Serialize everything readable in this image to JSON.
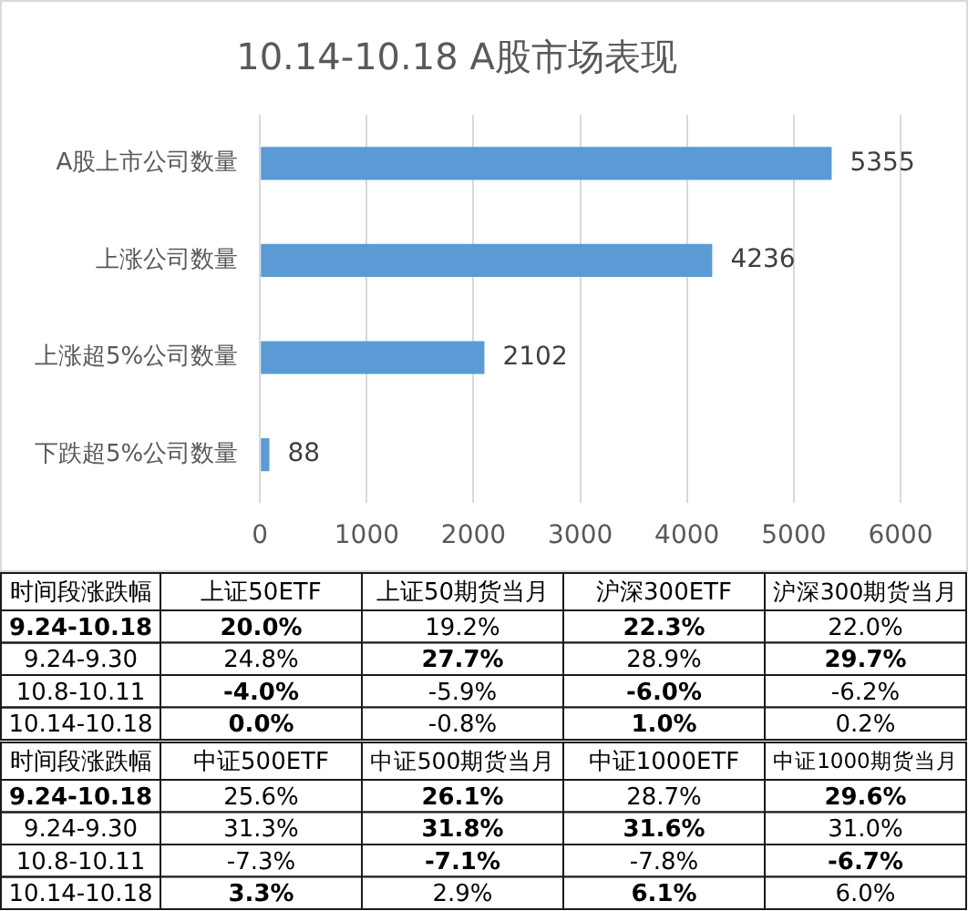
{
  "chart_data": [
    {
      "type": "bar",
      "title": "10.14-10.18 A股市场表现",
      "orientation": "horizontal",
      "categories": [
        "A股上市公司数量",
        "上涨公司数量",
        "上涨超5%公司数量",
        "下跌超5%公司数量"
      ],
      "values": [
        5355,
        4236,
        2102,
        88
      ],
      "color": "#5b9bd5",
      "xlim": [
        0,
        6000
      ],
      "xticks": [
        0,
        1000,
        2000,
        3000,
        4000,
        5000,
        6000
      ],
      "grid": "x",
      "data_labels": true
    },
    {
      "type": "heatmap",
      "ylabel": "时间段涨跌幅",
      "categories": [
        "上证50ETF",
        "上证50期货当月",
        "沪深300ETF",
        "沪深300期货当月"
      ],
      "y_categories": [
        "9.24-10.18",
        "9.24-9.30",
        "10.8-10.11",
        "10.14-10.18"
      ],
      "cells": [
        [
          20.0,
          19.2,
          22.3,
          22.0
        ],
        [
          24.8,
          27.7,
          28.9,
          29.7
        ],
        [
          -4.0,
          -5.9,
          -6.0,
          -6.2
        ],
        [
          0.0,
          -0.8,
          1.0,
          0.2
        ]
      ],
      "cell_labels": [
        [
          "20.0%",
          "19.2%",
          "22.3%",
          "22.0%"
        ],
        [
          "24.8%",
          "27.7%",
          "28.9%",
          "29.7%"
        ],
        [
          "-4.0%",
          "-5.9%",
          "-6.0%",
          "-6.2%"
        ],
        [
          "0.0%",
          "-0.8%",
          "1.0%",
          "0.2%"
        ]
      ]
    },
    {
      "type": "heatmap",
      "ylabel": "时间段涨跌幅",
      "categories": [
        "中证500ETF",
        "中证500期货当月",
        "中证1000ETF",
        "中证1000期货当月"
      ],
      "y_categories": [
        "9.24-10.18",
        "9.24-9.30",
        "10.8-10.11",
        "10.14-10.18"
      ],
      "cells": [
        [
          25.6,
          26.1,
          28.7,
          29.6
        ],
        [
          31.3,
          31.8,
          31.6,
          31.0
        ],
        [
          -7.3,
          -7.1,
          -7.8,
          -6.7
        ],
        [
          3.3,
          2.9,
          6.1,
          6.0
        ]
      ],
      "cell_labels": [
        [
          "25.6%",
          "26.1%",
          "28.7%",
          "29.6%"
        ],
        [
          "31.3%",
          "31.8%",
          "31.6%",
          "31.0%"
        ],
        [
          "-7.3%",
          "-7.1%",
          "-7.8%",
          "-6.7%"
        ],
        [
          "3.3%",
          "2.9%",
          "6.1%",
          "6.0%"
        ]
      ]
    }
  ]
}
